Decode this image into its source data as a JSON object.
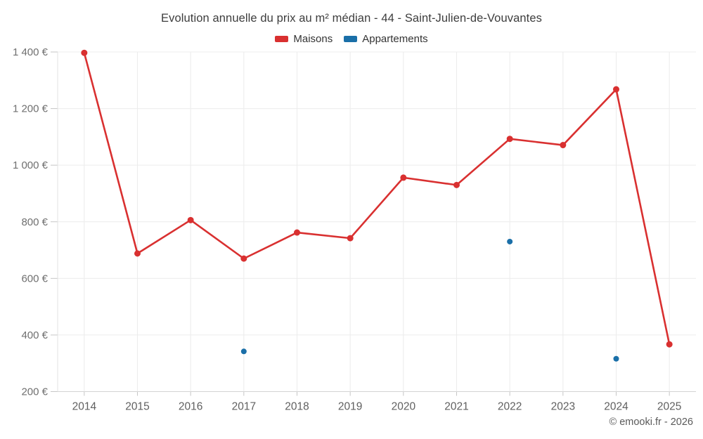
{
  "title": "Evolution annuelle du prix au m² médian - 44 - Saint-Julien-de-Vouvantes",
  "footer": "© emooki.fr - 2026",
  "colors": {
    "maisons": "#d93030",
    "appartements": "#1a6fa8",
    "gridline": "#ececec",
    "axis_line": "#e3e3e3",
    "bottom_axis": "#d4d4d4",
    "tick": "#c6c6c6",
    "ytick_text": "#6f6f6f",
    "xtick_text": "#606060"
  },
  "legend": [
    {
      "label": "Maisons",
      "color_key": "maisons"
    },
    {
      "label": "Appartements",
      "color_key": "appartements"
    }
  ],
  "chart_data": {
    "type": "line",
    "title": "Evolution annuelle du prix au m² médian - 44 - Saint-Julien-de-Vouvantes",
    "categories": [
      "2014",
      "2015",
      "2016",
      "2017",
      "2018",
      "2019",
      "2020",
      "2021",
      "2022",
      "2023",
      "2024",
      "2025"
    ],
    "series": [
      {
        "name": "Maisons",
        "color_key": "maisons",
        "draw_line": true,
        "marker_radius": 4.5,
        "values": [
          1397,
          688,
          806,
          670,
          762,
          742,
          956,
          930,
          1093,
          1071,
          1268,
          367
        ]
      },
      {
        "name": "Appartements",
        "color_key": "appartements",
        "draw_line": false,
        "marker_radius": 4,
        "values": [
          null,
          null,
          null,
          342,
          null,
          null,
          null,
          null,
          730,
          null,
          316,
          null
        ]
      }
    ],
    "ylim": [
      200,
      1400
    ],
    "ytick_values": [
      200,
      400,
      600,
      800,
      1000,
      1200,
      1400
    ],
    "ytick_labels": [
      "200 €",
      "400 €",
      "600 €",
      "800 €",
      "1 000 €",
      "1 200 €",
      "1 400 €"
    ],
    "grid": true,
    "legend_position": "top",
    "xlabel": "",
    "ylabel": ""
  }
}
